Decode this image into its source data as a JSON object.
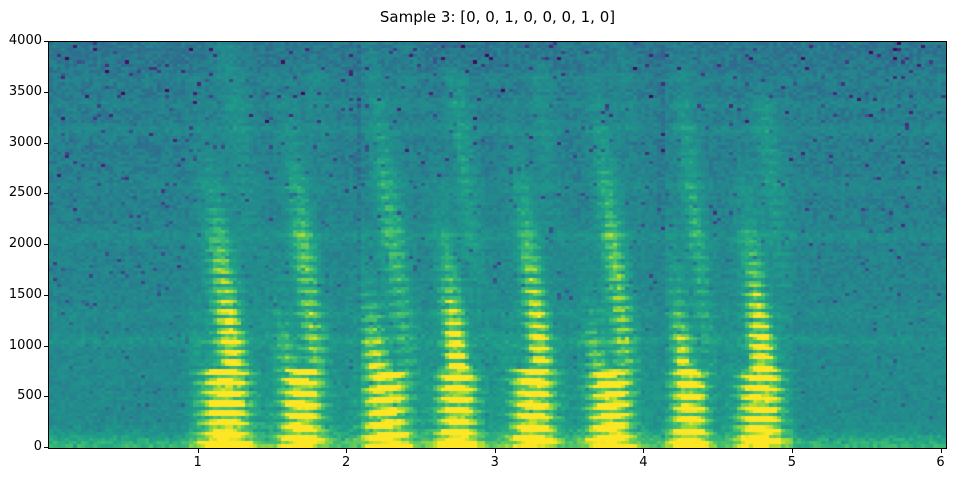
{
  "figure": {
    "background_color": "#ffffff",
    "spine_color": "#000000",
    "tick_color": "#000000",
    "text_color": "#000000"
  },
  "chart_data": {
    "type": "heatmap",
    "subtype": "audio-spectrogram",
    "title": "Sample 3: [0, 0, 1, 0, 0, 0, 1, 0]",
    "sample_index": 3,
    "label_vector": [
      0,
      0,
      1,
      0,
      0,
      0,
      1,
      0
    ],
    "xlabel": "",
    "ylabel": "",
    "xlim": [
      0,
      6.03
    ],
    "ylim": [
      0,
      4000
    ],
    "xticks": [
      1,
      2,
      3,
      4,
      5,
      6
    ],
    "yticks": [
      0,
      500,
      1000,
      1500,
      2000,
      2500,
      3000,
      3500,
      4000
    ],
    "grid": false,
    "legend": null,
    "colormap": {
      "name": "viridis",
      "stops": [
        [
          0.0,
          "#440154"
        ],
        [
          0.1,
          "#482878"
        ],
        [
          0.2,
          "#3e4a89"
        ],
        [
          0.3,
          "#31688e"
        ],
        [
          0.4,
          "#26828e"
        ],
        [
          0.5,
          "#21918c"
        ],
        [
          0.6,
          "#1fa088"
        ],
        [
          0.7,
          "#35b779"
        ],
        [
          0.8,
          "#5ec962"
        ],
        [
          0.9,
          "#addc30"
        ],
        [
          1.0,
          "#fde725"
        ]
      ]
    },
    "time_bins": 224,
    "freq_bins": 129,
    "background_level": 0.47,
    "high_freq_fade": 0.11,
    "noise_amplitude": 0.13,
    "speckle_probability": 0.035,
    "low_band": {
      "f_max_hz": 140,
      "gain": 0.22
    },
    "utterance_span_t": [
      0.95,
      5.0
    ],
    "utterance_floor_gain": 0.06,
    "resonance_bands": [
      {
        "f": 1055,
        "gain": 0.07,
        "w": 60
      },
      {
        "f": 1310,
        "gain": 0.045,
        "w": 55
      },
      {
        "f": 2080,
        "gain": 0.06,
        "w": 60
      },
      {
        "f": 2580,
        "gain": 0.04,
        "w": 55
      },
      {
        "f": 3130,
        "gain": 0.06,
        "w": 60
      },
      {
        "f": 3380,
        "gain": 0.05,
        "w": 55
      },
      {
        "f": 3630,
        "gain": 0.04,
        "w": 55
      }
    ],
    "speech_events": [
      {
        "t": 1.19,
        "w": 0.17,
        "f_top": 3900,
        "pitch_hz": 100,
        "amp": 1.0
      },
      {
        "t": 1.7,
        "w": 0.15,
        "f_top": 3650,
        "pitch_hz": 112,
        "amp": 0.95
      },
      {
        "t": 2.27,
        "w": 0.16,
        "f_top": 3950,
        "pitch_hz": 118,
        "amp": 0.95
      },
      {
        "t": 2.75,
        "w": 0.14,
        "f_top": 3600,
        "pitch_hz": 108,
        "amp": 1.0
      },
      {
        "t": 3.26,
        "w": 0.15,
        "f_top": 3650,
        "pitch_hz": 112,
        "amp": 0.95
      },
      {
        "t": 3.78,
        "w": 0.15,
        "f_top": 3950,
        "pitch_hz": 105,
        "amp": 1.0
      },
      {
        "t": 4.31,
        "w": 0.13,
        "f_top": 3800,
        "pitch_hz": 115,
        "amp": 0.9
      },
      {
        "t": 4.79,
        "w": 0.15,
        "f_top": 3300,
        "pitch_hz": 102,
        "amp": 1.0
      }
    ],
    "segment_seams_t": [
      2.08,
      4.12
    ]
  }
}
